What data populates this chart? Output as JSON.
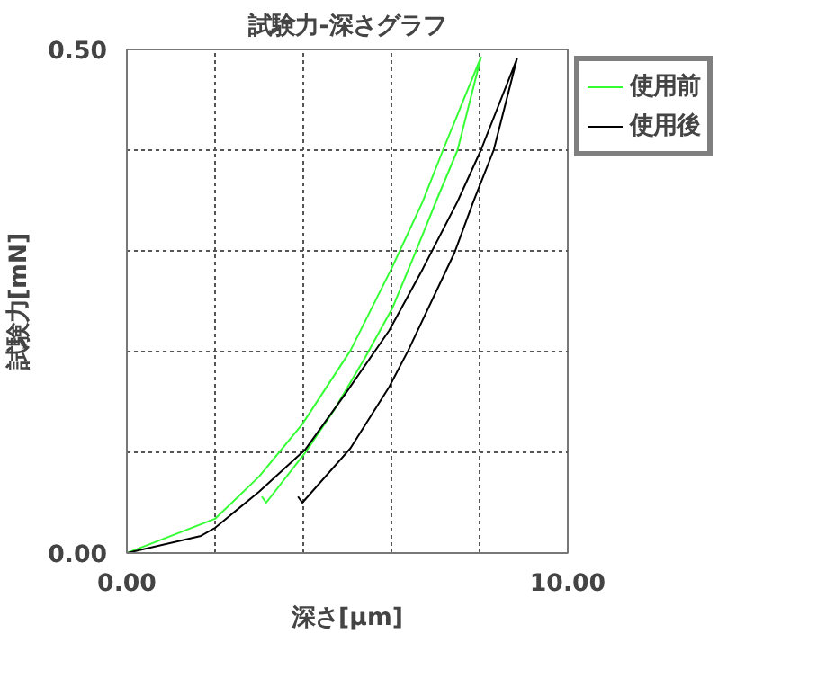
{
  "chart_data": {
    "type": "line",
    "title": "試験力-深さグラフ",
    "xlabel": "深さ[μm]",
    "ylabel": "試験力[mN]",
    "xlim": [
      0,
      10
    ],
    "ylim": [
      0,
      0.5
    ],
    "xticks": [
      {
        "value": 0,
        "label": "0.00"
      },
      {
        "value": 2,
        "label": null
      },
      {
        "value": 4,
        "label": null
      },
      {
        "value": 6,
        "label": null
      },
      {
        "value": 8,
        "label": null
      },
      {
        "value": 10,
        "label": "10.00"
      }
    ],
    "yticks": [
      {
        "value": 0,
        "label": "0.00"
      },
      {
        "value": 0.1,
        "label": null
      },
      {
        "value": 0.2,
        "label": null
      },
      {
        "value": 0.3,
        "label": null
      },
      {
        "value": 0.4,
        "label": null
      },
      {
        "value": 0.5,
        "label": "0.50"
      }
    ],
    "grid": true,
    "legend": "top right",
    "series": [
      {
        "name": "使用前",
        "color": "#33ff33",
        "x": [
          0,
          2.0,
          3.0,
          3.98,
          5.07,
          6.02,
          6.71,
          7.17,
          8.03,
          7.5,
          7.04,
          6.55,
          6.02,
          5.39,
          4.7,
          4.05,
          3.16,
          3.06
        ],
        "values": [
          0,
          0.034,
          0.076,
          0.128,
          0.201,
          0.284,
          0.349,
          0.4,
          0.492,
          0.4,
          0.352,
          0.299,
          0.243,
          0.193,
          0.142,
          0.1,
          0.05,
          0.056
        ]
      },
      {
        "name": "使用後",
        "color": "#000000",
        "x": [
          0,
          1.68,
          2.0,
          3.0,
          4.05,
          4.97,
          5.95,
          6.71,
          7.5,
          8.03,
          8.85,
          8.32,
          7.86,
          7.43,
          6.38,
          5.95,
          5.07,
          3.98,
          3.88
        ],
        "values": [
          0,
          0.017,
          0.025,
          0.061,
          0.103,
          0.159,
          0.221,
          0.282,
          0.349,
          0.4,
          0.491,
          0.4,
          0.349,
          0.298,
          0.201,
          0.165,
          0.104,
          0.05,
          0.056
        ]
      }
    ]
  }
}
